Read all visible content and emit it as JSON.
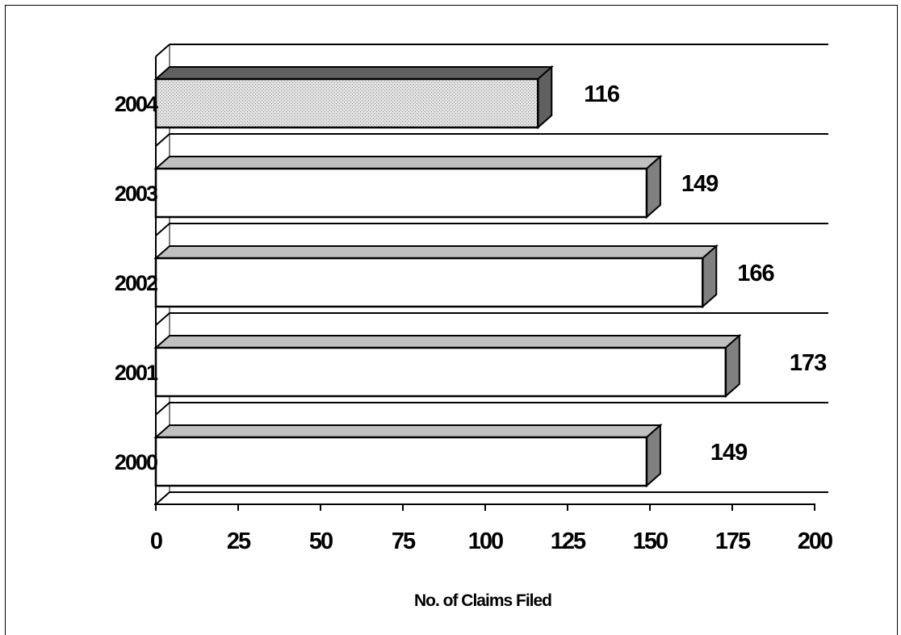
{
  "chart_data": {
    "type": "bar",
    "orientation": "horizontal",
    "style": "3d",
    "title": "",
    "xlabel": "No. of Claims Filed",
    "ylabel": "",
    "categories": [
      "2004",
      "2003",
      "2002",
      "2001",
      "2000"
    ],
    "values": [
      116,
      149,
      166,
      173,
      149
    ],
    "value_labels": [
      "116",
      "149",
      "166",
      "173",
      "149"
    ],
    "xlim": [
      0,
      200
    ],
    "x_ticks": [
      "0",
      "25",
      "50",
      "75",
      "100",
      "125",
      "150",
      "175",
      "200"
    ],
    "gridlines": true,
    "legend": "none",
    "colors": {
      "highlight_bar": "#d9d9d9",
      "bar_face": "#ffffff",
      "bar_top": "#c0c0c0",
      "bar_side": "#808080",
      "highlight_side": "#606060",
      "line": "#000000"
    }
  }
}
